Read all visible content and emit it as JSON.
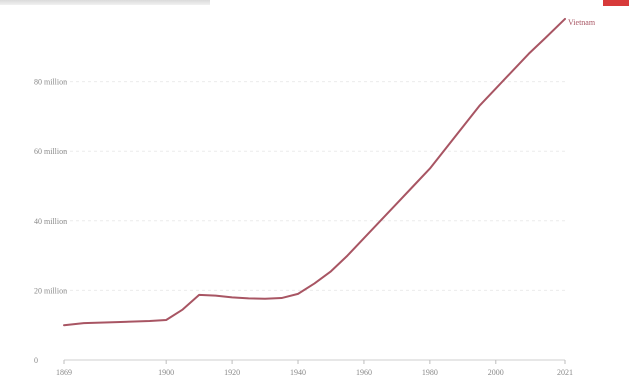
{
  "chart_data": {
    "type": "line",
    "title": "",
    "xlabel": "",
    "ylabel": "",
    "x_ticks": [
      "1869",
      "1900",
      "1920",
      "1940",
      "1960",
      "1980",
      "2000",
      "2021"
    ],
    "y_ticks": [
      "0",
      "20 million",
      "40 million",
      "60 million",
      "80 million"
    ],
    "xlim": [
      1869,
      2021
    ],
    "ylim": [
      0,
      100000000
    ],
    "grid": true,
    "legend": "none",
    "series": [
      {
        "name": "Vietnam",
        "color": "#a85563",
        "points": [
          [
            1869,
            10000000
          ],
          [
            1875,
            10600000
          ],
          [
            1885,
            10900000
          ],
          [
            1895,
            11200000
          ],
          [
            1900,
            11500000
          ],
          [
            1905,
            14500000
          ],
          [
            1910,
            18700000
          ],
          [
            1915,
            18500000
          ],
          [
            1920,
            18000000
          ],
          [
            1925,
            17700000
          ],
          [
            1930,
            17600000
          ],
          [
            1935,
            17800000
          ],
          [
            1940,
            19000000
          ],
          [
            1945,
            22000000
          ],
          [
            1950,
            25500000
          ],
          [
            1955,
            30000000
          ],
          [
            1960,
            35000000
          ],
          [
            1965,
            40000000
          ],
          [
            1970,
            45000000
          ],
          [
            1975,
            50000000
          ],
          [
            1980,
            55000000
          ],
          [
            1985,
            61000000
          ],
          [
            1990,
            67000000
          ],
          [
            1995,
            73000000
          ],
          [
            2000,
            78000000
          ],
          [
            2005,
            83000000
          ],
          [
            2010,
            88000000
          ],
          [
            2015,
            92500000
          ],
          [
            2021,
            98000000
          ]
        ]
      }
    ]
  }
}
